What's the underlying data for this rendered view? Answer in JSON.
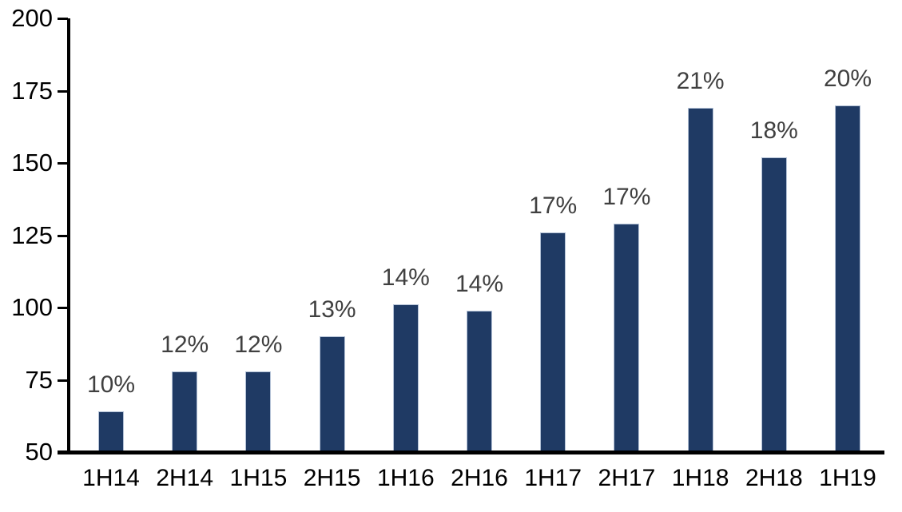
{
  "chart_data": {
    "type": "bar",
    "title": "",
    "xlabel": "",
    "ylabel": "",
    "categories": [
      "1H14",
      "2H14",
      "1H15",
      "2H15",
      "1H16",
      "2H16",
      "1H17",
      "2H17",
      "1H18",
      "2H18",
      "1H19"
    ],
    "values": [
      64,
      78,
      78,
      90,
      101,
      99,
      126,
      129,
      169,
      152,
      170
    ],
    "data_labels": [
      "10%",
      "12%",
      "12%",
      "13%",
      "14%",
      "14%",
      "17%",
      "17%",
      "21%",
      "18%",
      "20%"
    ],
    "ylim": [
      50,
      200
    ],
    "yticks": [
      50,
      75,
      100,
      125,
      150,
      175,
      200
    ],
    "grid": false,
    "legend_position": "none",
    "colors": {
      "bar_fill": "#1F3A64",
      "bar_border": "#B3C1D6",
      "data_label": "#404040",
      "axis": "#000000",
      "background": "#FFFFFF"
    }
  }
}
